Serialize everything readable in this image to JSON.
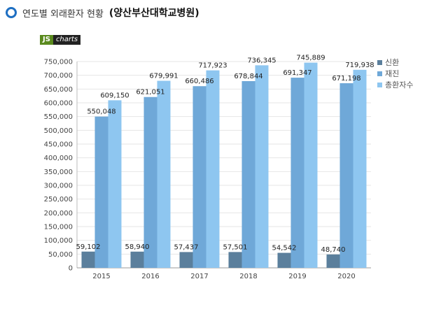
{
  "header": {
    "title": "연도별 외래환자 현황",
    "subtitle": "(양산부산대학교병원)"
  },
  "logo": {
    "js": "JS",
    "charts": "charts"
  },
  "colors": {
    "신환": "#5b7f9c",
    "재진": "#6fa8d8",
    "총환자수": "#8ec6f0",
    "bullet": "#1e6fc2"
  },
  "chart_data": {
    "type": "bar",
    "categories": [
      "2015",
      "2016",
      "2017",
      "2018",
      "2019",
      "2020"
    ],
    "series": [
      {
        "name": "신환",
        "values": [
          59102,
          58940,
          57437,
          57501,
          54542,
          48740
        ],
        "labels": [
          "59,102",
          "58,940",
          "57,437",
          "57,501",
          "54,542",
          "48,740"
        ]
      },
      {
        "name": "재진",
        "values": [
          550048,
          621051,
          660486,
          678844,
          691347,
          671198
        ],
        "labels": [
          "550,048",
          "621,051",
          "660,486",
          "678,844",
          "691,347",
          "671,198"
        ]
      },
      {
        "name": "총환자수",
        "values": [
          609150,
          679991,
          717923,
          736345,
          745889,
          719938
        ],
        "labels": [
          "609,150",
          "679,991",
          "717,923",
          "736,345",
          "745,889",
          "719,938"
        ]
      }
    ],
    "ylim": [
      0,
      750000
    ],
    "yticks": [
      "0",
      "50,000",
      "100,000",
      "150,000",
      "200,000",
      "250,000",
      "300,000",
      "350,000",
      "400,000",
      "450,000",
      "500,000",
      "550,000",
      "600,000",
      "650,000",
      "700,000",
      "750,000"
    ],
    "legend": "top-right",
    "grid": true
  }
}
